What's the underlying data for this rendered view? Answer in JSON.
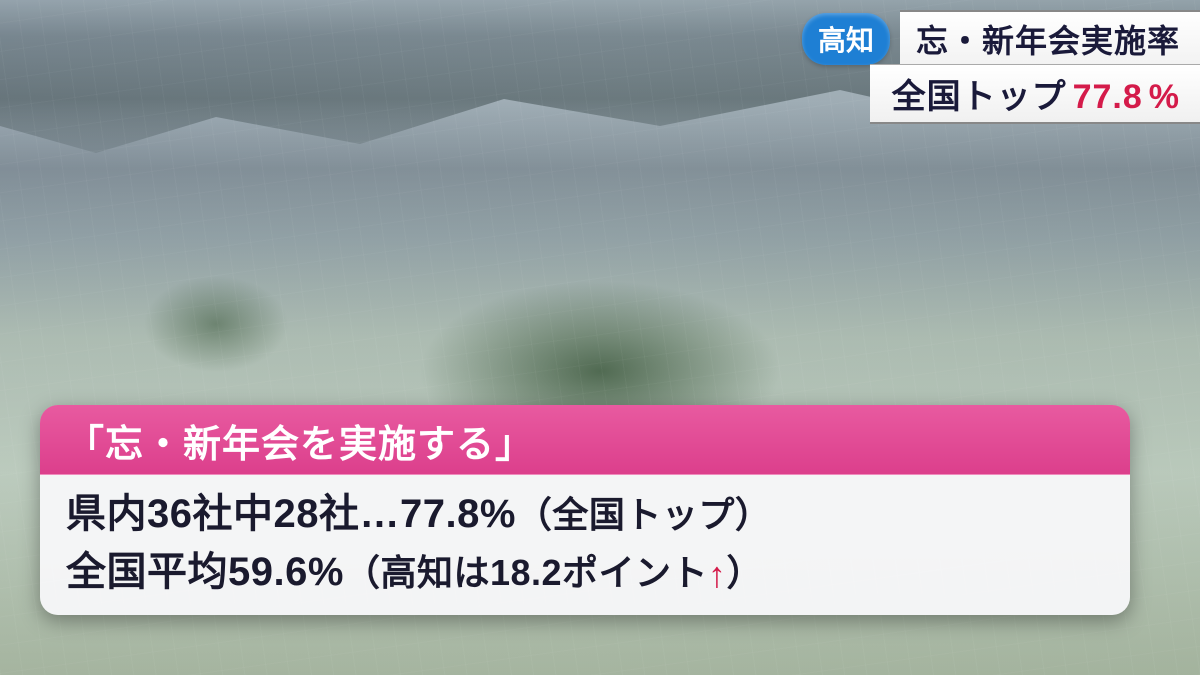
{
  "colors": {
    "badge_bg": "#1e7fd4",
    "badge_text": "#ffffff",
    "bar_bg_top": "#ffffff",
    "bar_bg_bottom": "#f2f2f2",
    "bar_text": "#1a1a3a",
    "accent_red": "#d41b4a",
    "lt_header_top": "#e85aa0",
    "lt_header_bottom": "#dc3f8c",
    "lt_body_bg": "rgba(248,248,250,0.94)",
    "lt_text": "#1a1a2e"
  },
  "top_banner": {
    "region_label": "高知",
    "headline": "忘・新年会実施率",
    "sub_prefix": "全国トップ",
    "sub_value": "77.8",
    "sub_unit": "%"
  },
  "lower_third": {
    "header": "「忘・新年会を実施する」",
    "line1": {
      "text_a": "県内36社中28社…",
      "value": "77.8",
      "unit": "%",
      "note": "（全国トップ）"
    },
    "line2": {
      "text_a": "全国平均",
      "value": "59.6",
      "unit": "%",
      "note_prefix": "（高知は",
      "diff": "18.2",
      "diff_unit": "ポイント",
      "arrow": "↑",
      "note_suffix": "）"
    }
  }
}
